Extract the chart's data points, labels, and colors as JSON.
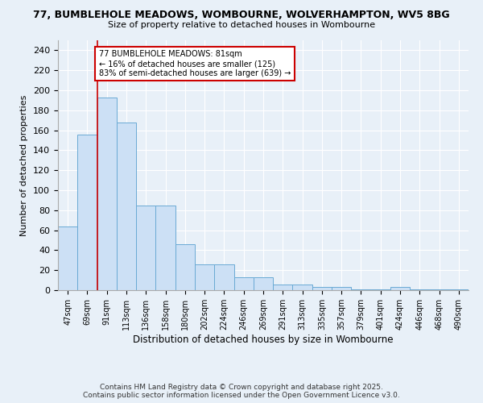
{
  "title_line1": "77, BUMBLEHOLE MEADOWS, WOMBOURNE, WOLVERHAMPTON, WV5 8BG",
  "title_line2": "Size of property relative to detached houses in Wombourne",
  "xlabel": "Distribution of detached houses by size in Wombourne",
  "ylabel": "Number of detached properties",
  "footer_line1": "Contains HM Land Registry data © Crown copyright and database right 2025.",
  "footer_line2": "Contains public sector information licensed under the Open Government Licence v3.0.",
  "categories": [
    "47sqm",
    "69sqm",
    "91sqm",
    "113sqm",
    "136sqm",
    "158sqm",
    "180sqm",
    "202sqm",
    "224sqm",
    "246sqm",
    "269sqm",
    "291sqm",
    "313sqm",
    "335sqm",
    "357sqm",
    "379sqm",
    "401sqm",
    "424sqm",
    "446sqm",
    "468sqm",
    "490sqm"
  ],
  "values": [
    64,
    156,
    193,
    168,
    85,
    85,
    46,
    26,
    26,
    13,
    13,
    6,
    6,
    3,
    3,
    1,
    1,
    3,
    1,
    1,
    1
  ],
  "bar_color": "#cce0f5",
  "bar_edge_color": "#6aaad4",
  "background_color": "#e8f0f8",
  "plot_bg_color": "#e8f0f8",
  "grid_color": "#ffffff",
  "vline_x": 1.5,
  "vline_color": "#cc0000",
  "annotation_text": "77 BUMBLEHOLE MEADOWS: 81sqm\n← 16% of detached houses are smaller (125)\n83% of semi-detached houses are larger (639) →",
  "annotation_box_color": "#ffffff",
  "annotation_box_edge": "#cc0000",
  "ylim": [
    0,
    250
  ],
  "yticks": [
    0,
    20,
    40,
    60,
    80,
    100,
    120,
    140,
    160,
    180,
    200,
    220,
    240
  ]
}
